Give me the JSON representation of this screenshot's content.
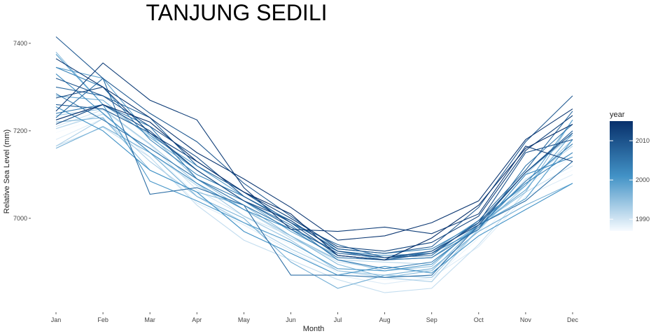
{
  "chart_data": {
    "type": "line",
    "title": "TANJUNG SEDILI",
    "xlabel": "Month",
    "ylabel": "Relative Sea Level (mm)",
    "categories": [
      "Jan",
      "Feb",
      "Mar",
      "Apr",
      "May",
      "Jun",
      "Jul",
      "Aug",
      "Sep",
      "Oct",
      "Nov",
      "Dec"
    ],
    "y_ticks": [
      7000,
      7200,
      7400
    ],
    "ylim": [
      6795,
      7435
    ],
    "grid": false,
    "legend": {
      "title": "year",
      "placement": "right",
      "type": "colorbar",
      "range": [
        1987,
        2015
      ],
      "ticks": [
        1990,
        2000,
        2010
      ],
      "color_low": "#f7fbff",
      "color_high": "#08306b"
    },
    "series": [
      {
        "year": 1987,
        "values": [
          7196,
          7232,
          7160,
          7050,
          7000,
          6950,
          6905,
          6900,
          6895,
          6960,
          7060,
          7110
        ]
      },
      {
        "year": 1988,
        "values": [
          7205,
          7242,
          7152,
          7055,
          6990,
          6940,
          6875,
          6860,
          6860,
          6955,
          7075,
          7140
        ]
      },
      {
        "year": 1989,
        "values": [
          7180,
          7228,
          7140,
          7035,
          6985,
          6925,
          6870,
          6850,
          6865,
          6935,
          7050,
          7100
        ]
      },
      {
        "year": 1990,
        "values": [
          7210,
          7248,
          7168,
          7065,
          7005,
          6960,
          6900,
          6885,
          6880,
          6970,
          7090,
          7150
        ]
      },
      {
        "year": 1991,
        "values": [
          7165,
          7208,
          7140,
          7030,
          6950,
          6905,
          6860,
          6830,
          6840,
          6940,
          7060,
          7120
        ]
      },
      {
        "year": 1992,
        "values": [
          7205,
          7238,
          7150,
          7075,
          7020,
          6955,
          6905,
          6900,
          6895,
          6985,
          7085,
          7165
        ]
      },
      {
        "year": 1993,
        "values": [
          7165,
          7228,
          7130,
          7050,
          6990,
          6930,
          6880,
          6865,
          6855,
          6975,
          7100,
          7200
        ]
      },
      {
        "year": 1994,
        "values": [
          7235,
          7250,
          7170,
          7080,
          7005,
          6950,
          6880,
          6870,
          6865,
          6975,
          7075,
          7180
        ]
      },
      {
        "year": 1995,
        "values": [
          7380,
          7260,
          7190,
          7090,
          7020,
          6960,
          6905,
          6880,
          6890,
          6990,
          7105,
          7190
        ]
      },
      {
        "year": 1996,
        "values": [
          7220,
          7230,
          7110,
          7060,
          7030,
          6960,
          6895,
          6865,
          6880,
          6985,
          7060,
          7225
        ]
      },
      {
        "year": 1997,
        "values": [
          7160,
          7210,
          7150,
          7050,
          7000,
          6900,
          6840,
          6870,
          6885,
          6970,
          7030,
          7080
        ]
      },
      {
        "year": 1998,
        "values": [
          7280,
          7270,
          7185,
          7110,
          7040,
          6970,
          6915,
          6905,
          6910,
          6985,
          7065,
          7195
        ]
      },
      {
        "year": 1999,
        "values": [
          7345,
          7320,
          7190,
          7120,
          7050,
          6995,
          6925,
          6905,
          6925,
          6995,
          7075,
          7225
        ]
      },
      {
        "year": 2000,
        "values": [
          7375,
          7260,
          7085,
          7040,
          6990,
          6945,
          6885,
          6880,
          6895,
          6985,
          7045,
          7180
        ]
      },
      {
        "year": 2001,
        "values": [
          7255,
          7200,
          7110,
          7060,
          6970,
          6920,
          6870,
          6890,
          6875,
          6960,
          7020,
          7080
        ]
      },
      {
        "year": 2002,
        "values": [
          7330,
          7240,
          7150,
          7080,
          7020,
          6975,
          6925,
          6915,
          6920,
          6975,
          7100,
          7140
        ]
      },
      {
        "year": 2003,
        "values": [
          7345,
          7300,
          7180,
          7100,
          7050,
          6990,
          6930,
          6920,
          6930,
          6990,
          7080,
          7150
        ]
      },
      {
        "year": 2004,
        "values": [
          7240,
          7260,
          7210,
          7090,
          7040,
          6985,
          6905,
          6885,
          6900,
          6980,
          7085,
          7170
        ]
      },
      {
        "year": 2005,
        "values": [
          7285,
          7225,
          7160,
          7090,
          7030,
          6975,
          6910,
          6905,
          6910,
          6975,
          7120,
          7215
        ]
      },
      {
        "year": 2006,
        "values": [
          7230,
          7320,
          7055,
          7070,
          7030,
          6870,
          6870,
          6865,
          6870,
          6985,
          7040,
          7130
        ]
      },
      {
        "year": 2007,
        "values": [
          7300,
          7280,
          7230,
          7120,
          7060,
          6990,
          6940,
          6910,
          6915,
          6995,
          7110,
          7245
        ]
      },
      {
        "year": 2008,
        "values": [
          7260,
          7250,
          7195,
          7110,
          7040,
          6980,
          6920,
          6910,
          6920,
          6990,
          7105,
          7200
        ]
      },
      {
        "year": 2009,
        "values": [
          7415,
          7320,
          7240,
          7175,
          7080,
          7005,
          6930,
          6920,
          6935,
          7025,
          7175,
          7280
        ]
      },
      {
        "year": 2010,
        "values": [
          7320,
          7280,
          7210,
          7140,
          7050,
          6990,
          6915,
          6905,
          6920,
          6990,
          7150,
          7180
        ]
      },
      {
        "year": 2011,
        "values": [
          7215,
          7260,
          7200,
          7110,
          7040,
          6995,
          6925,
          6910,
          6925,
          6985,
          7105,
          7195
        ]
      },
      {
        "year": 2012,
        "values": [
          7275,
          7300,
          7195,
          7130,
          7060,
          7000,
          6935,
          6925,
          6945,
          7005,
          7155,
          7235
        ]
      },
      {
        "year": 2013,
        "values": [
          7245,
          7355,
          7270,
          7225,
          7070,
          6975,
          6970,
          6980,
          6965,
          7010,
          7165,
          7130
        ]
      },
      {
        "year": 2014,
        "values": [
          7365,
          7300,
          7230,
          7150,
          7090,
          7025,
          6950,
          6960,
          6990,
          7040,
          7180,
          7250
        ]
      },
      {
        "year": 2015,
        "values": [
          7225,
          7260,
          7220,
          7130,
          7060,
          7010,
          6915,
          6905,
          6955,
          7030,
          7160,
          7215
        ]
      }
    ]
  }
}
